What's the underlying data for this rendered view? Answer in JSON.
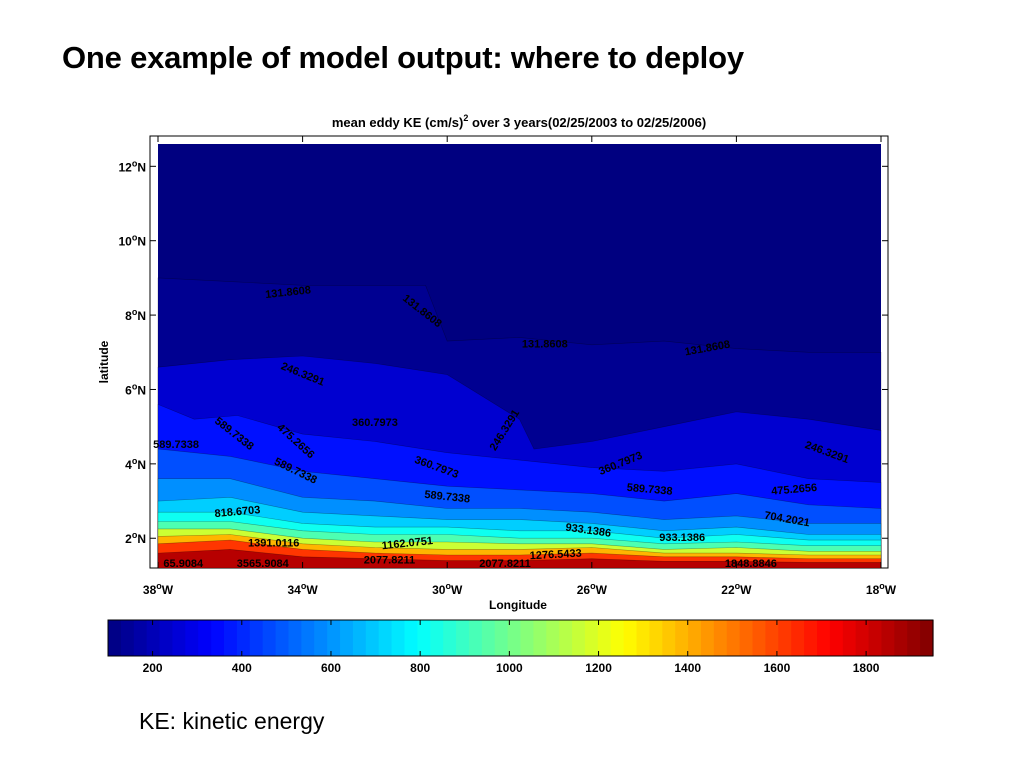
{
  "slide": {
    "title": "One example of model output: where to deploy",
    "caption": "KE: kinetic energy"
  },
  "chart_data": {
    "type": "heatmap",
    "subtype": "filled-contour",
    "title_main": "mean eddy KE (cm/s)",
    "title_sup": "2",
    "title_rest": " over 3 years(02/25/2003 to 02/25/2006)",
    "xlabel": "Longitude",
    "ylabel": "latitude",
    "x_range": [
      -38,
      -18
    ],
    "y_range": [
      1.2,
      12.6
    ],
    "x_ticks": [
      {
        "value": -38,
        "label": "38",
        "hem": "W"
      },
      {
        "value": -34,
        "label": "34",
        "hem": "W"
      },
      {
        "value": -30,
        "label": "30",
        "hem": "W"
      },
      {
        "value": -26,
        "label": "26",
        "hem": "W"
      },
      {
        "value": -22,
        "label": "22",
        "hem": "W"
      },
      {
        "value": -18,
        "label": "18",
        "hem": "W"
      }
    ],
    "y_ticks": [
      {
        "value": 12,
        "label": "12",
        "hem": "N"
      },
      {
        "value": 10,
        "label": "10",
        "hem": "N"
      },
      {
        "value": 8,
        "label": "8",
        "hem": "N"
      },
      {
        "value": 6,
        "label": "6",
        "hem": "N"
      },
      {
        "value": 4,
        "label": "4",
        "hem": "N"
      },
      {
        "value": 2,
        "label": "2",
        "hem": "N"
      }
    ],
    "colorbar": {
      "range": [
        100,
        1950
      ],
      "ticks": [
        200,
        400,
        600,
        800,
        1000,
        1200,
        1400,
        1600,
        1800
      ]
    },
    "contour_bands": [
      {
        "level": 131.8608,
        "profile": [
          [
            -38,
            9.0
          ],
          [
            -36,
            8.9
          ],
          [
            -34,
            8.8
          ],
          [
            -32,
            8.8
          ],
          [
            -30.6,
            8.8
          ],
          [
            -30,
            7.3
          ],
          [
            -28,
            7.4
          ],
          [
            -26,
            7.2
          ],
          [
            -24,
            7.3
          ],
          [
            -22,
            7.1
          ],
          [
            -20,
            7.0
          ],
          [
            -18,
            7.0
          ]
        ]
      },
      {
        "level": 246.3291,
        "profile": [
          [
            -38,
            6.6
          ],
          [
            -36,
            6.8
          ],
          [
            -34,
            6.9
          ],
          [
            -32,
            6.7
          ],
          [
            -30,
            6.4
          ],
          [
            -28,
            5.2
          ],
          [
            -27.6,
            4.4
          ],
          [
            -26,
            4.6
          ],
          [
            -24,
            5.0
          ],
          [
            -22,
            5.4
          ],
          [
            -20,
            5.2
          ],
          [
            -18,
            4.9
          ]
        ]
      },
      {
        "level": 360.7973,
        "profile": [
          [
            -38,
            5.6
          ],
          [
            -37,
            5.2
          ],
          [
            -35.8,
            5.3
          ],
          [
            -34,
            4.8
          ],
          [
            -32,
            4.6
          ],
          [
            -30,
            4.3
          ],
          [
            -28,
            4.1
          ],
          [
            -26,
            3.9
          ],
          [
            -24,
            3.8
          ],
          [
            -22,
            4.0
          ],
          [
            -20,
            3.6
          ],
          [
            -18,
            3.5
          ]
        ]
      },
      {
        "level": 475.2656,
        "profile": [
          [
            -38,
            4.4
          ],
          [
            -36,
            4.2
          ],
          [
            -34,
            3.8
          ],
          [
            -32,
            3.6
          ],
          [
            -30,
            3.4
          ],
          [
            -28,
            3.3
          ],
          [
            -26,
            3.2
          ],
          [
            -24,
            3.0
          ],
          [
            -22,
            3.2
          ],
          [
            -20,
            2.9
          ],
          [
            -18,
            2.8
          ]
        ]
      },
      {
        "level": 589.7338,
        "profile": [
          [
            -38,
            3.6
          ],
          [
            -36,
            3.6
          ],
          [
            -34,
            3.1
          ],
          [
            -32,
            3.0
          ],
          [
            -30,
            2.8
          ],
          [
            -28,
            2.8
          ],
          [
            -26,
            2.7
          ],
          [
            -24,
            2.5
          ],
          [
            -22,
            2.6
          ],
          [
            -20,
            2.4
          ],
          [
            -18,
            2.4
          ]
        ]
      },
      {
        "level": 704.2021,
        "profile": [
          [
            -38,
            3.0
          ],
          [
            -36,
            3.1
          ],
          [
            -34,
            2.7
          ],
          [
            -32,
            2.6
          ],
          [
            -30,
            2.5
          ],
          [
            -28,
            2.5
          ],
          [
            -26,
            2.4
          ],
          [
            -24,
            2.2
          ],
          [
            -22,
            2.3
          ],
          [
            -20,
            2.1
          ],
          [
            -18,
            2.1
          ]
        ]
      },
      {
        "level": 818.6703,
        "profile": [
          [
            -38,
            2.7
          ],
          [
            -36,
            2.7
          ],
          [
            -34,
            2.4
          ],
          [
            -32,
            2.3
          ],
          [
            -30,
            2.3
          ],
          [
            -28,
            2.2
          ],
          [
            -26,
            2.2
          ],
          [
            -24,
            2.0
          ],
          [
            -22,
            2.1
          ],
          [
            -20,
            1.95
          ],
          [
            -18,
            1.95
          ]
        ]
      },
      {
        "level": 933.1386,
        "profile": [
          [
            -38,
            2.45
          ],
          [
            -36,
            2.45
          ],
          [
            -34,
            2.2
          ],
          [
            -32,
            2.1
          ],
          [
            -30,
            2.1
          ],
          [
            -28,
            2.0
          ],
          [
            -26,
            2.0
          ],
          [
            -24,
            1.85
          ],
          [
            -22,
            1.9
          ],
          [
            -20,
            1.8
          ],
          [
            -18,
            1.8
          ]
        ]
      },
      {
        "level": 1162.0751,
        "profile": [
          [
            -38,
            2.25
          ],
          [
            -36,
            2.25
          ],
          [
            -34,
            2.0
          ],
          [
            -32,
            1.9
          ],
          [
            -30,
            1.9
          ],
          [
            -28,
            1.85
          ],
          [
            -26,
            1.85
          ],
          [
            -24,
            1.7
          ],
          [
            -22,
            1.75
          ],
          [
            -20,
            1.65
          ],
          [
            -18,
            1.65
          ]
        ]
      },
      {
        "level": 1391.0116,
        "profile": [
          [
            -38,
            2.05
          ],
          [
            -36,
            2.1
          ],
          [
            -34,
            1.85
          ],
          [
            -32,
            1.75
          ],
          [
            -30,
            1.7
          ],
          [
            -28,
            1.7
          ],
          [
            -26,
            1.75
          ],
          [
            -24,
            1.6
          ],
          [
            -22,
            1.6
          ],
          [
            -20,
            1.55
          ],
          [
            -18,
            1.55
          ]
        ]
      },
      {
        "level": 1619.9481,
        "profile": [
          [
            -38,
            1.85
          ],
          [
            -36,
            1.95
          ],
          [
            -34,
            1.7
          ],
          [
            -32,
            1.6
          ],
          [
            -30,
            1.55
          ],
          [
            -28,
            1.55
          ],
          [
            -26,
            1.6
          ],
          [
            -24,
            1.5
          ],
          [
            -22,
            1.5
          ],
          [
            -20,
            1.45
          ],
          [
            -18,
            1.45
          ]
        ]
      },
      {
        "level": 1848.8846,
        "profile": [
          [
            -38,
            1.6
          ],
          [
            -36,
            1.7
          ],
          [
            -34,
            1.5
          ],
          [
            -32,
            1.45
          ],
          [
            -30,
            1.4
          ],
          [
            -28,
            1.4
          ],
          [
            -26,
            1.45
          ],
          [
            -24,
            1.38
          ],
          [
            -22,
            1.38
          ],
          [
            -20,
            1.35
          ],
          [
            -18,
            1.35
          ]
        ]
      }
    ],
    "contour_labels": [
      {
        "text": "131.8608",
        "x": -34.4,
        "y": 8.6,
        "angle": -6
      },
      {
        "text": "131.8608",
        "x": -30.7,
        "y": 8.1,
        "angle": 38
      },
      {
        "text": "131.8608",
        "x": -27.3,
        "y": 7.2,
        "angle": 0
      },
      {
        "text": "131.8608",
        "x": -22.8,
        "y": 7.1,
        "angle": -10
      },
      {
        "text": "246.3291",
        "x": -34.0,
        "y": 6.4,
        "angle": 22
      },
      {
        "text": "246.3291",
        "x": -28.4,
        "y": 4.9,
        "angle": -58
      },
      {
        "text": "246.3291",
        "x": -19.5,
        "y": 4.3,
        "angle": 20
      },
      {
        "text": "360.7973",
        "x": -32.0,
        "y": 5.1,
        "angle": 0
      },
      {
        "text": "360.7973",
        "x": -30.3,
        "y": 3.9,
        "angle": 20
      },
      {
        "text": "360.7973",
        "x": -25.2,
        "y": 4.0,
        "angle": -22
      },
      {
        "text": "589.7338",
        "x": -35.9,
        "y": 4.8,
        "angle": 38
      },
      {
        "text": "589.7338",
        "x": -37.5,
        "y": 4.5,
        "angle": 0
      },
      {
        "text": "589.7338",
        "x": -34.2,
        "y": 3.8,
        "angle": 26
      },
      {
        "text": "589.7338",
        "x": -30.0,
        "y": 3.1,
        "angle": 6
      },
      {
        "text": "589.7338",
        "x": -24.4,
        "y": 3.3,
        "angle": 5
      },
      {
        "text": "475.2656",
        "x": -34.2,
        "y": 4.6,
        "angle": 42
      },
      {
        "text": "475.2656",
        "x": -20.4,
        "y": 3.3,
        "angle": -5
      },
      {
        "text": "704.2021",
        "x": -20.6,
        "y": 2.5,
        "angle": 10
      },
      {
        "text": "818.6703",
        "x": -35.8,
        "y": 2.7,
        "angle": -5
      },
      {
        "text": "933.1386",
        "x": -26.1,
        "y": 2.2,
        "angle": 8
      },
      {
        "text": "933.1386",
        "x": -23.5,
        "y": 2.0,
        "angle": 0
      },
      {
        "text": "1162.0751",
        "x": -31.1,
        "y": 1.85,
        "angle": -6
      },
      {
        "text": "1391.0116",
        "x": -34.8,
        "y": 1.85,
        "angle": 0
      },
      {
        "text": "1276.5433",
        "x": -27.0,
        "y": 1.55,
        "angle": -3
      },
      {
        "text": "1848.8846",
        "x": -21.6,
        "y": 1.3,
        "angle": 0
      },
      {
        "text": "2077.8211",
        "x": -31.6,
        "y": 1.4,
        "angle": 0
      },
      {
        "text": "2077.8211",
        "x": -28.4,
        "y": 1.3,
        "angle": 0
      },
      {
        "text": "65.9084",
        "x": -37.3,
        "y": 1.3,
        "angle": 0
      },
      {
        "text": "3565.9084",
        "x": -35.1,
        "y": 1.3,
        "angle": 0
      }
    ]
  }
}
